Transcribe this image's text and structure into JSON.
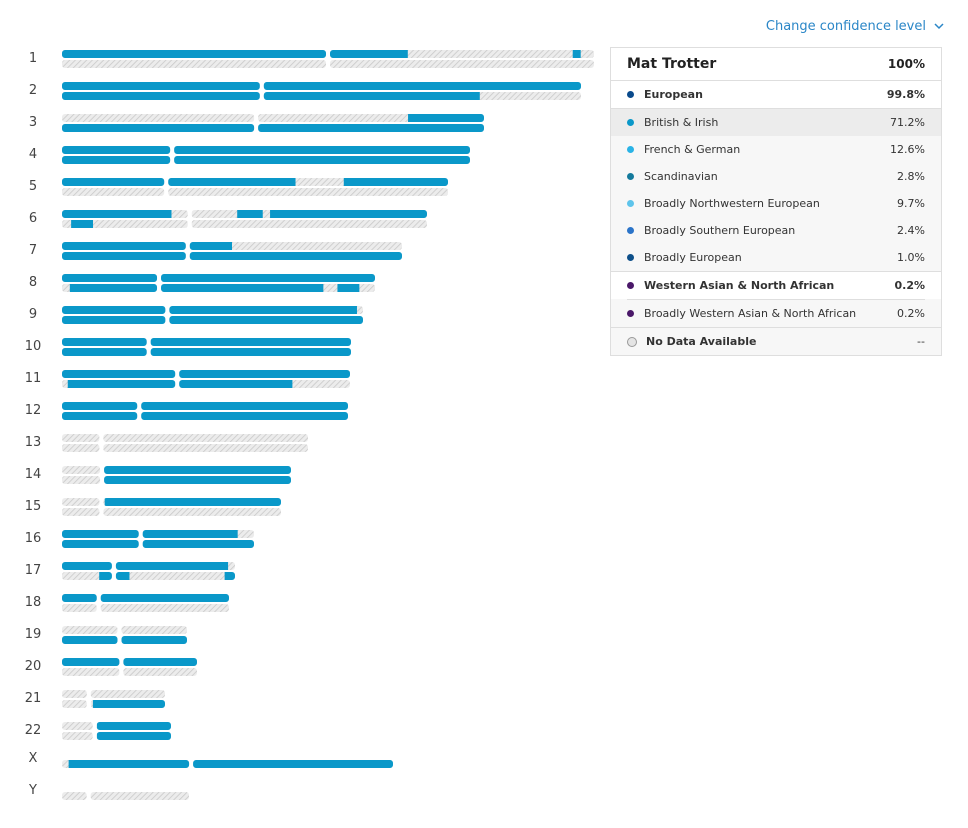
{
  "confidence_link": "Change confidence level",
  "legend": {
    "title": "Mat Trotter",
    "total": "100%",
    "groups": [
      {
        "label": "European",
        "value": "99.8%",
        "color": "#0a4a8c",
        "children": [
          {
            "label": "British & Irish",
            "value": "71.2%",
            "color": "#0a98c9",
            "selected": true
          },
          {
            "label": "French & German",
            "value": "12.6%",
            "color": "#2ab3e6"
          },
          {
            "label": "Scandinavian",
            "value": "2.8%",
            "color": "#147a9c"
          },
          {
            "label": "Broadly Northwestern European",
            "value": "9.7%",
            "color": "#5ec4eb"
          },
          {
            "label": "Broadly Southern European",
            "value": "2.4%",
            "color": "#2b74c9"
          },
          {
            "label": "Broadly European",
            "value": "1.0%",
            "color": "#0d4f89"
          }
        ]
      },
      {
        "label": "Western Asian & North African",
        "value": "0.2%",
        "color": "#4a1869",
        "children": [
          {
            "label": "Broadly Western Asian & North African",
            "value": "0.2%",
            "color": "#4a1869"
          }
        ]
      }
    ],
    "no_data": {
      "label": "No Data Available",
      "value": "--"
    }
  },
  "chromosomes": [
    {
      "label": "1",
      "centromere": 0.5,
      "top": [
        [
          0.0,
          0.65
        ],
        [
          0.96,
          0.975
        ]
      ],
      "bottom": []
    },
    {
      "label": "2",
      "centromere": 0.385,
      "top": [
        [
          0.0,
          1.0
        ]
      ],
      "bottom": [
        [
          0.0,
          0.805
        ]
      ]
    },
    {
      "label": "3",
      "centromere": 0.46,
      "top": [
        [
          0.82,
          1.0
        ]
      ],
      "bottom": [
        [
          0.0,
          1.0
        ]
      ]
    },
    {
      "label": "4",
      "centromere": 0.27,
      "top": [
        [
          0.0,
          1.0
        ]
      ],
      "bottom": [
        [
          0.0,
          1.0
        ]
      ]
    },
    {
      "label": "5",
      "centromere": 0.27,
      "top": [
        [
          0.0,
          0.605
        ],
        [
          0.73,
          1.0
        ]
      ],
      "bottom": []
    },
    {
      "label": "6",
      "centromere": 0.35,
      "top": [
        [
          0.0,
          0.3
        ],
        [
          0.48,
          0.55
        ],
        [
          0.57,
          1.0
        ]
      ],
      "bottom": [
        [
          0.025,
          0.085
        ]
      ]
    },
    {
      "label": "7",
      "centromere": 0.37,
      "top": [
        [
          0.0,
          0.5
        ]
      ],
      "bottom": [
        [
          0.0,
          1.0
        ]
      ]
    },
    {
      "label": "8",
      "centromere": 0.31,
      "top": [
        [
          0.0,
          1.0
        ]
      ],
      "bottom": [
        [
          0.025,
          0.835
        ],
        [
          0.88,
          0.95
        ]
      ]
    },
    {
      "label": "9",
      "centromere": 0.35,
      "top": [
        [
          0.0,
          0.98
        ]
      ],
      "bottom": [
        [
          0.0,
          1.0
        ]
      ]
    },
    {
      "label": "10",
      "centromere": 0.3,
      "top": [
        [
          0.0,
          1.0
        ]
      ],
      "bottom": [
        [
          0.0,
          1.0
        ]
      ]
    },
    {
      "label": "11",
      "centromere": 0.4,
      "top": [
        [
          0.0,
          1.0
        ]
      ],
      "bottom": [
        [
          0.02,
          0.8
        ]
      ]
    },
    {
      "label": "12",
      "centromere": 0.27,
      "top": [
        [
          0.0,
          1.0
        ]
      ],
      "bottom": [
        [
          0.0,
          1.0
        ]
      ]
    },
    {
      "label": "13",
      "centromere": 0.16,
      "top": [],
      "bottom": []
    },
    {
      "label": "14",
      "centromere": 0.175,
      "top": [
        [
          0.18,
          1.0
        ]
      ],
      "bottom": [
        [
          0.18,
          1.0
        ]
      ]
    },
    {
      "label": "15",
      "centromere": 0.18,
      "top": [
        [
          0.195,
          1.0
        ]
      ],
      "bottom": []
    },
    {
      "label": "16",
      "centromere": 0.41,
      "top": [
        [
          0.0,
          0.915
        ]
      ],
      "bottom": [
        [
          0.0,
          1.0
        ]
      ]
    },
    {
      "label": "17",
      "centromere": 0.3,
      "top": [
        [
          0.0,
          0.96
        ]
      ],
      "bottom": [
        [
          0.215,
          0.3
        ],
        [
          0.31,
          0.39
        ],
        [
          0.94,
          1.0
        ]
      ]
    },
    {
      "label": "18",
      "centromere": 0.22,
      "top": [
        [
          0.0,
          1.0
        ]
      ],
      "bottom": []
    },
    {
      "label": "19",
      "centromere": 0.46,
      "top": [],
      "bottom": [
        [
          0.0,
          1.0
        ]
      ]
    },
    {
      "label": "20",
      "centromere": 0.44,
      "top": [
        [
          0.0,
          1.0
        ]
      ],
      "bottom": []
    },
    {
      "label": "21",
      "centromere": 0.26,
      "top": [],
      "bottom": [
        [
          0.3,
          1.0
        ]
      ]
    },
    {
      "label": "22",
      "centromere": 0.3,
      "top": [
        [
          0.32,
          1.0
        ]
      ],
      "bottom": [
        [
          0.32,
          1.0
        ]
      ]
    },
    {
      "label": "X",
      "centromere": 0.39,
      "top": [
        [
          0.02,
          1.0
        ]
      ],
      "bottom": null
    },
    {
      "label": "Y",
      "centromere": 0.21,
      "top": [],
      "bottom": null
    }
  ]
}
